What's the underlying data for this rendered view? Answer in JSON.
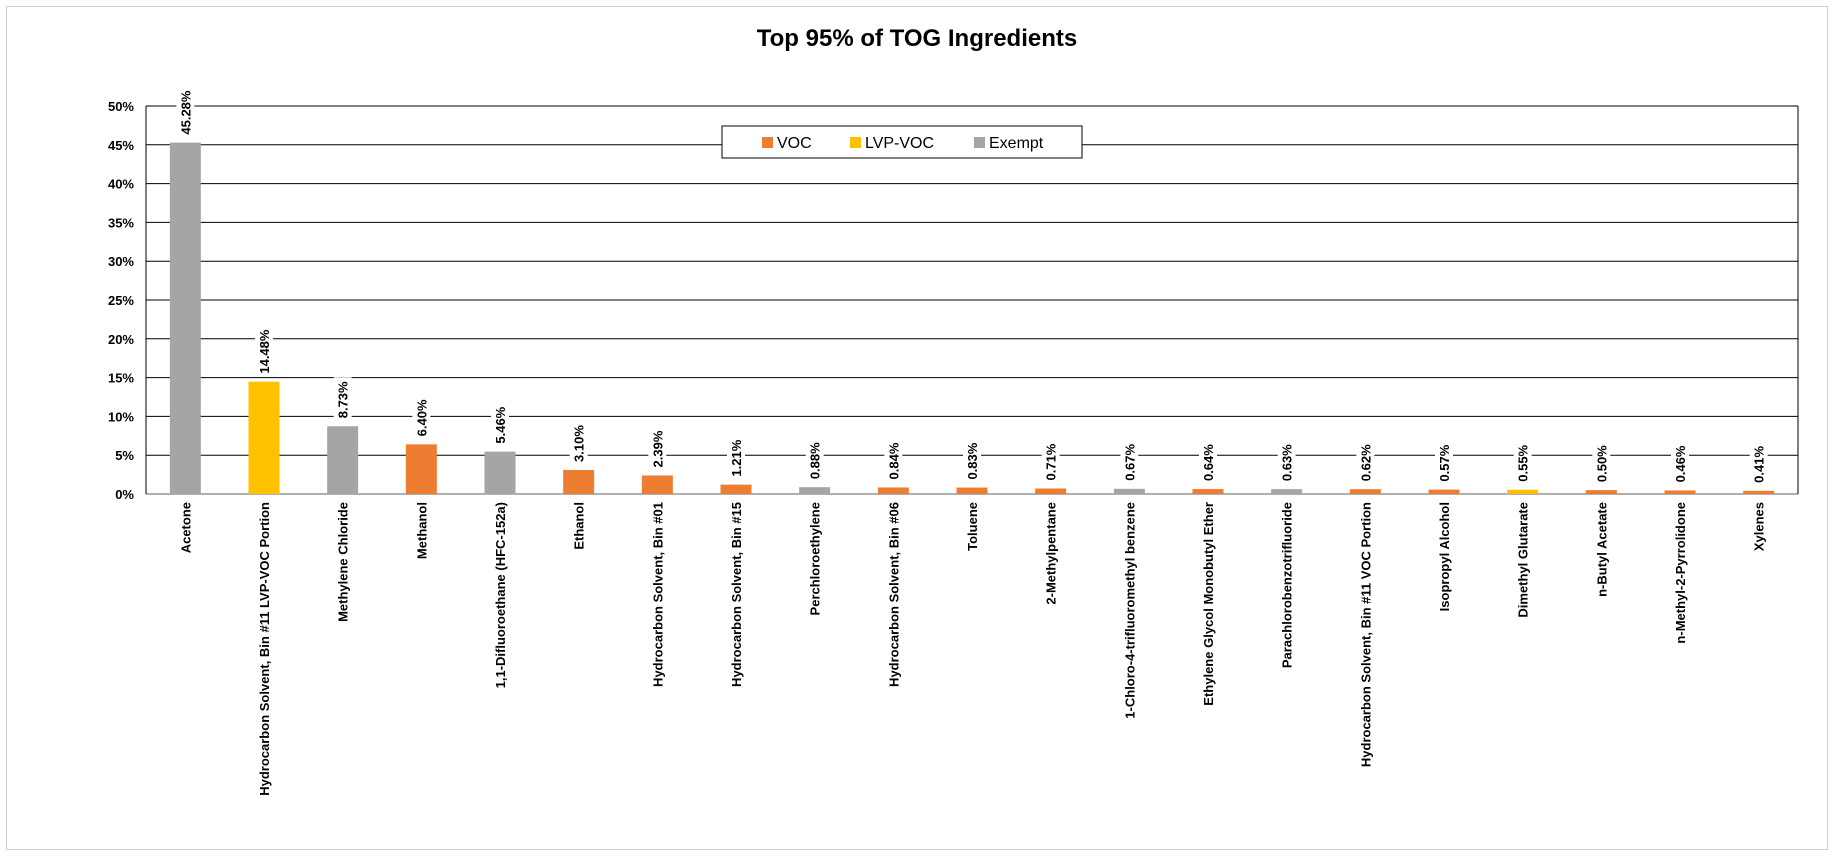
{
  "chart_data": {
    "type": "bar",
    "title": "Top 95% of TOG Ingredients",
    "xlabel": "",
    "ylabel": "",
    "ylim": [
      0,
      50
    ],
    "yticks": [
      "0%",
      "5%",
      "10%",
      "15%",
      "20%",
      "25%",
      "30%",
      "35%",
      "40%",
      "45%",
      "50%"
    ],
    "ytick_values": [
      0,
      5,
      10,
      15,
      20,
      25,
      30,
      35,
      40,
      45,
      50
    ],
    "grid": true,
    "legend_position": "top-center",
    "legend": [
      {
        "name": "VOC",
        "color": "#ED7D31"
      },
      {
        "name": "LVP-VOC",
        "color": "#FFC000"
      },
      {
        "name": "Exempt",
        "color": "#A5A5A5"
      }
    ],
    "categories": [
      "Acetone",
      "Hydrocarbon Solvent, Bin #11 LVP-VOC Portion",
      "Methylene Chloride",
      "Methanol",
      "1,1-Difluoroethane (HFC-152a)",
      "Ethanol",
      "Hydrocarbon Solvent, Bin #01",
      "Hydrocarbon Solvent, Bin #15",
      "Perchloroethylene",
      "Hydrocarbon Solvent, Bin #06",
      "Toluene",
      "2-Methylpentane",
      "1-Chloro-4-trifluoromethyl benzene",
      "Ethylene Glycol Monobutyl Ether",
      "Parachlorobenzotrifluoride",
      "Hydrocarbon Solvent, Bin #11 VOC Portion",
      "Isopropyl Alcohol",
      "Dimethyl Glutarate",
      "n-Butyl Acetate",
      "n-Methyl-2-Pyrrolidone",
      "Xylenes"
    ],
    "values": [
      45.28,
      14.48,
      8.73,
      6.4,
      5.46,
      3.1,
      2.39,
      1.21,
      0.88,
      0.84,
      0.83,
      0.71,
      0.67,
      0.64,
      0.63,
      0.62,
      0.57,
      0.55,
      0.5,
      0.46,
      0.41
    ],
    "value_labels": [
      "45.28%",
      "14.48%",
      "8.73%",
      "6.40%",
      "5.46%",
      "3.10%",
      "2.39%",
      "1.21%",
      "0.88%",
      "0.84%",
      "0.83%",
      "0.71%",
      "0.67%",
      "0.64%",
      "0.63%",
      "0.62%",
      "0.57%",
      "0.55%",
      "0.50%",
      "0.46%",
      "0.41%"
    ],
    "bar_group": [
      "Exempt",
      "LVP-VOC",
      "Exempt",
      "VOC",
      "Exempt",
      "VOC",
      "VOC",
      "VOC",
      "Exempt",
      "VOC",
      "VOC",
      "VOC",
      "Exempt",
      "VOC",
      "Exempt",
      "VOC",
      "VOC",
      "LVP-VOC",
      "VOC",
      "VOC",
      "VOC"
    ]
  }
}
